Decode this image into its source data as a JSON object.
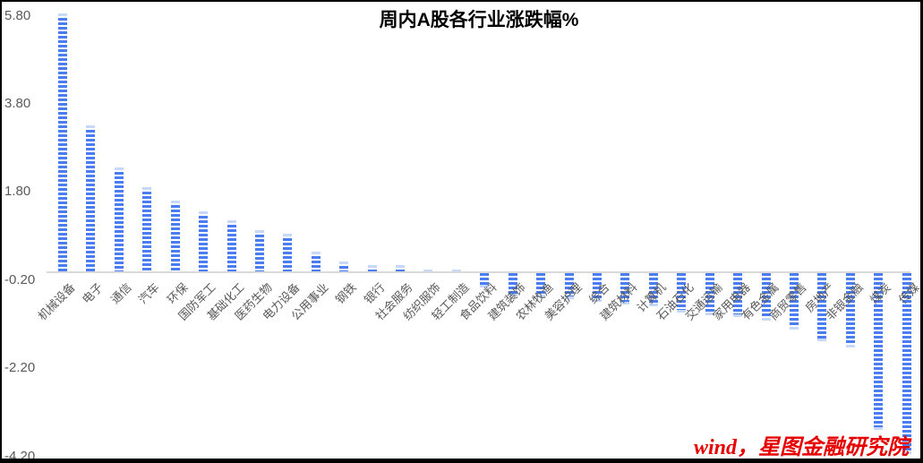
{
  "chart_data": {
    "type": "bar",
    "title": "周内A股各行业涨跌幅%",
    "categories": [
      "机械设备",
      "电子",
      "通信",
      "汽车",
      "环保",
      "国防军工",
      "基础化工",
      "医药生物",
      "电力设备",
      "公用事业",
      "钢铁",
      "银行",
      "社会服务",
      "纺织服饰",
      "轻工制造",
      "食品饮料",
      "建筑装饰",
      "农林牧渔",
      "美容护理",
      "综合",
      "建筑材料",
      "计算机",
      "石油石化",
      "交通运输",
      "家用电器",
      "有色金属",
      "商贸零售",
      "房地产",
      "非银金融",
      "煤炭",
      "传媒"
    ],
    "values": [
      5.85,
      3.32,
      2.35,
      1.92,
      1.6,
      1.36,
      1.16,
      0.93,
      0.85,
      0.45,
      0.22,
      0.15,
      0.15,
      0.05,
      0.04,
      -0.32,
      -0.53,
      -0.55,
      -0.58,
      -0.66,
      -0.71,
      -0.76,
      -0.9,
      -0.95,
      -1.0,
      -1.08,
      -1.28,
      -1.55,
      -1.68,
      -3.56,
      -4.11
    ],
    "xlabel": "",
    "ylabel": "",
    "yticks": [
      5.8,
      3.8,
      1.8,
      -0.2,
      -2.2,
      -4.2
    ],
    "ylim": [
      -4.2,
      5.8
    ],
    "grid": false,
    "legend_position": "none",
    "bar_color": "#4a7cf2",
    "bar_tip_color": "#c8d8f8",
    "axis_line_color": "#d9d9d9",
    "tick_label_color": "#595959",
    "title_color": "#000000"
  },
  "watermark": {
    "text": "wind，星图金融研究院",
    "color": "#e60000"
  },
  "frame": {
    "border_color": "#000000",
    "background": "#ffffff"
  }
}
